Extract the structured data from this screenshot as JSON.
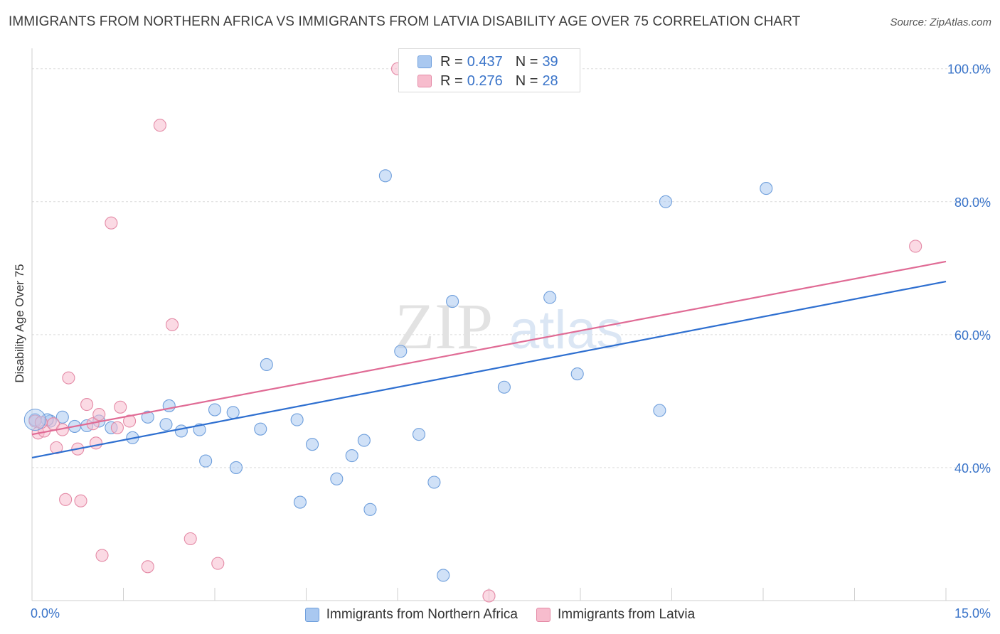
{
  "header": {
    "title": "IMMIGRANTS FROM NORTHERN AFRICA VS IMMIGRANTS FROM LATVIA DISABILITY AGE OVER 75 CORRELATION CHART",
    "source": "Source: ZipAtlas.com"
  },
  "watermark": {
    "zip": "ZIP",
    "atlas": "atlas"
  },
  "legend_top": {
    "r_label": "R =",
    "n_label": "N =",
    "rows": [
      {
        "r": "0.437",
        "n": "39",
        "color": "#a9c8f0"
      },
      {
        "r": "0.276",
        "n": "28",
        "color": "#f7bccd"
      }
    ]
  },
  "chart_data": {
    "type": "scatter",
    "title": "IMMIGRANTS FROM NORTHERN AFRICA VS IMMIGRANTS FROM LATVIA DISABILITY AGE OVER 75 CORRELATION CHART",
    "xlabel": "",
    "ylabel": "Disability Age Over 75",
    "xlim": [
      0,
      15
    ],
    "ylim": [
      20,
      102
    ],
    "x_tick_labels": [
      "0.0%",
      "15.0%"
    ],
    "y_ticks": [
      40,
      60,
      80,
      100
    ],
    "y_tick_labels": [
      "40.0%",
      "60.0%",
      "80.0%",
      "100.0%"
    ],
    "grid": true,
    "legend_position": "bottom",
    "series": [
      {
        "name": "Immigrants from Northern Africa",
        "color": "#a9c8f0",
        "stroke": "#6f9fdc",
        "line_color": "#2e6fd0",
        "trend": [
          [
            0,
            41.5
          ],
          [
            15,
            68.0
          ]
        ],
        "points": [
          [
            0.05,
            47.2
          ],
          [
            0.3,
            47.0
          ],
          [
            0.5,
            47.6
          ],
          [
            0.7,
            46.2
          ],
          [
            0.9,
            46.3
          ],
          [
            1.1,
            47.0
          ],
          [
            1.3,
            46.0
          ],
          [
            1.65,
            44.5
          ],
          [
            1.9,
            47.6
          ],
          [
            2.2,
            46.5
          ],
          [
            2.25,
            49.3
          ],
          [
            2.45,
            45.5
          ],
          [
            2.75,
            45.7
          ],
          [
            2.85,
            41.0
          ],
          [
            3.0,
            48.7
          ],
          [
            3.3,
            48.3
          ],
          [
            3.35,
            40.0
          ],
          [
            3.75,
            45.8
          ],
          [
            3.85,
            55.5
          ],
          [
            4.35,
            47.2
          ],
          [
            4.4,
            34.8
          ],
          [
            4.6,
            43.5
          ],
          [
            5.0,
            38.3
          ],
          [
            5.25,
            41.8
          ],
          [
            5.45,
            44.1
          ],
          [
            5.55,
            33.7
          ],
          [
            5.8,
            83.9
          ],
          [
            6.05,
            57.5
          ],
          [
            6.35,
            45.0
          ],
          [
            6.6,
            37.8
          ],
          [
            6.75,
            23.8
          ],
          [
            6.9,
            65.0
          ],
          [
            7.75,
            52.1
          ],
          [
            8.5,
            65.6
          ],
          [
            8.95,
            54.1
          ],
          [
            10.3,
            48.6
          ],
          [
            10.4,
            80.0
          ],
          [
            12.05,
            82.0
          ],
          [
            0.25,
            47.2
          ]
        ]
      },
      {
        "name": "Immigrants from Latvia",
        "color": "#f7bccd",
        "stroke": "#e48aa6",
        "line_color": "#e06b95",
        "trend": [
          [
            0,
            45.0
          ],
          [
            15,
            71.0
          ]
        ],
        "points": [
          [
            0.05,
            47.0
          ],
          [
            0.1,
            45.2
          ],
          [
            0.2,
            45.5
          ],
          [
            0.35,
            46.6
          ],
          [
            0.4,
            43.0
          ],
          [
            0.5,
            45.7
          ],
          [
            0.55,
            35.2
          ],
          [
            0.6,
            53.5
          ],
          [
            0.75,
            42.8
          ],
          [
            0.8,
            35.0
          ],
          [
            0.9,
            49.5
          ],
          [
            1.0,
            46.6
          ],
          [
            1.05,
            43.7
          ],
          [
            1.1,
            48.0
          ],
          [
            1.15,
            26.8
          ],
          [
            1.3,
            76.8
          ],
          [
            1.4,
            46.0
          ],
          [
            1.45,
            49.1
          ],
          [
            1.6,
            47.0
          ],
          [
            1.9,
            25.1
          ],
          [
            2.1,
            91.5
          ],
          [
            2.3,
            61.5
          ],
          [
            2.6,
            29.3
          ],
          [
            3.05,
            25.6
          ],
          [
            6.0,
            100.0
          ],
          [
            7.5,
            20.7
          ],
          [
            14.5,
            73.3
          ],
          [
            0.15,
            46.8
          ]
        ]
      }
    ]
  }
}
